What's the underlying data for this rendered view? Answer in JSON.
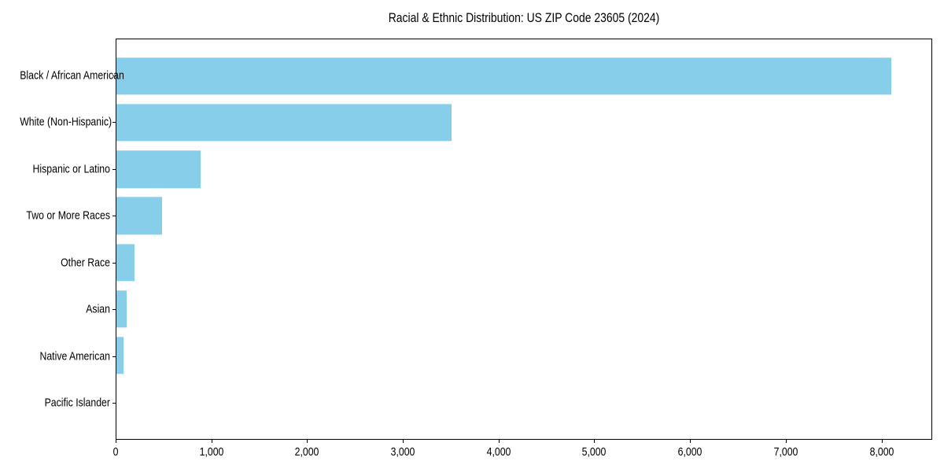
{
  "chart_data": {
    "type": "bar",
    "orientation": "horizontal",
    "title": "Racial & Ethnic Distribution: US ZIP Code 23605 (2024)",
    "categories": [
      "Black / African American",
      "White (Non-Hispanic)",
      "Hispanic or Latino",
      "Two or More Races",
      "Other Race",
      "Asian",
      "Native American",
      "Pacific Islander"
    ],
    "values": [
      8110,
      3510,
      885,
      480,
      190,
      105,
      70,
      0
    ],
    "xlabel": "",
    "ylabel": "",
    "xlim": [
      0,
      8530
    ],
    "x_tick_values": [
      0,
      1000,
      2000,
      3000,
      4000,
      5000,
      6000,
      7000,
      8000
    ],
    "x_tick_labels": [
      "0",
      "1,000",
      "2,000",
      "3,000",
      "4,000",
      "5,000",
      "6,000",
      "7,000",
      "8,000"
    ],
    "bar_color": "#87CEEB",
    "axis_color": "#000000",
    "background_color": "#ffffff",
    "grid": false,
    "legend": "none"
  }
}
